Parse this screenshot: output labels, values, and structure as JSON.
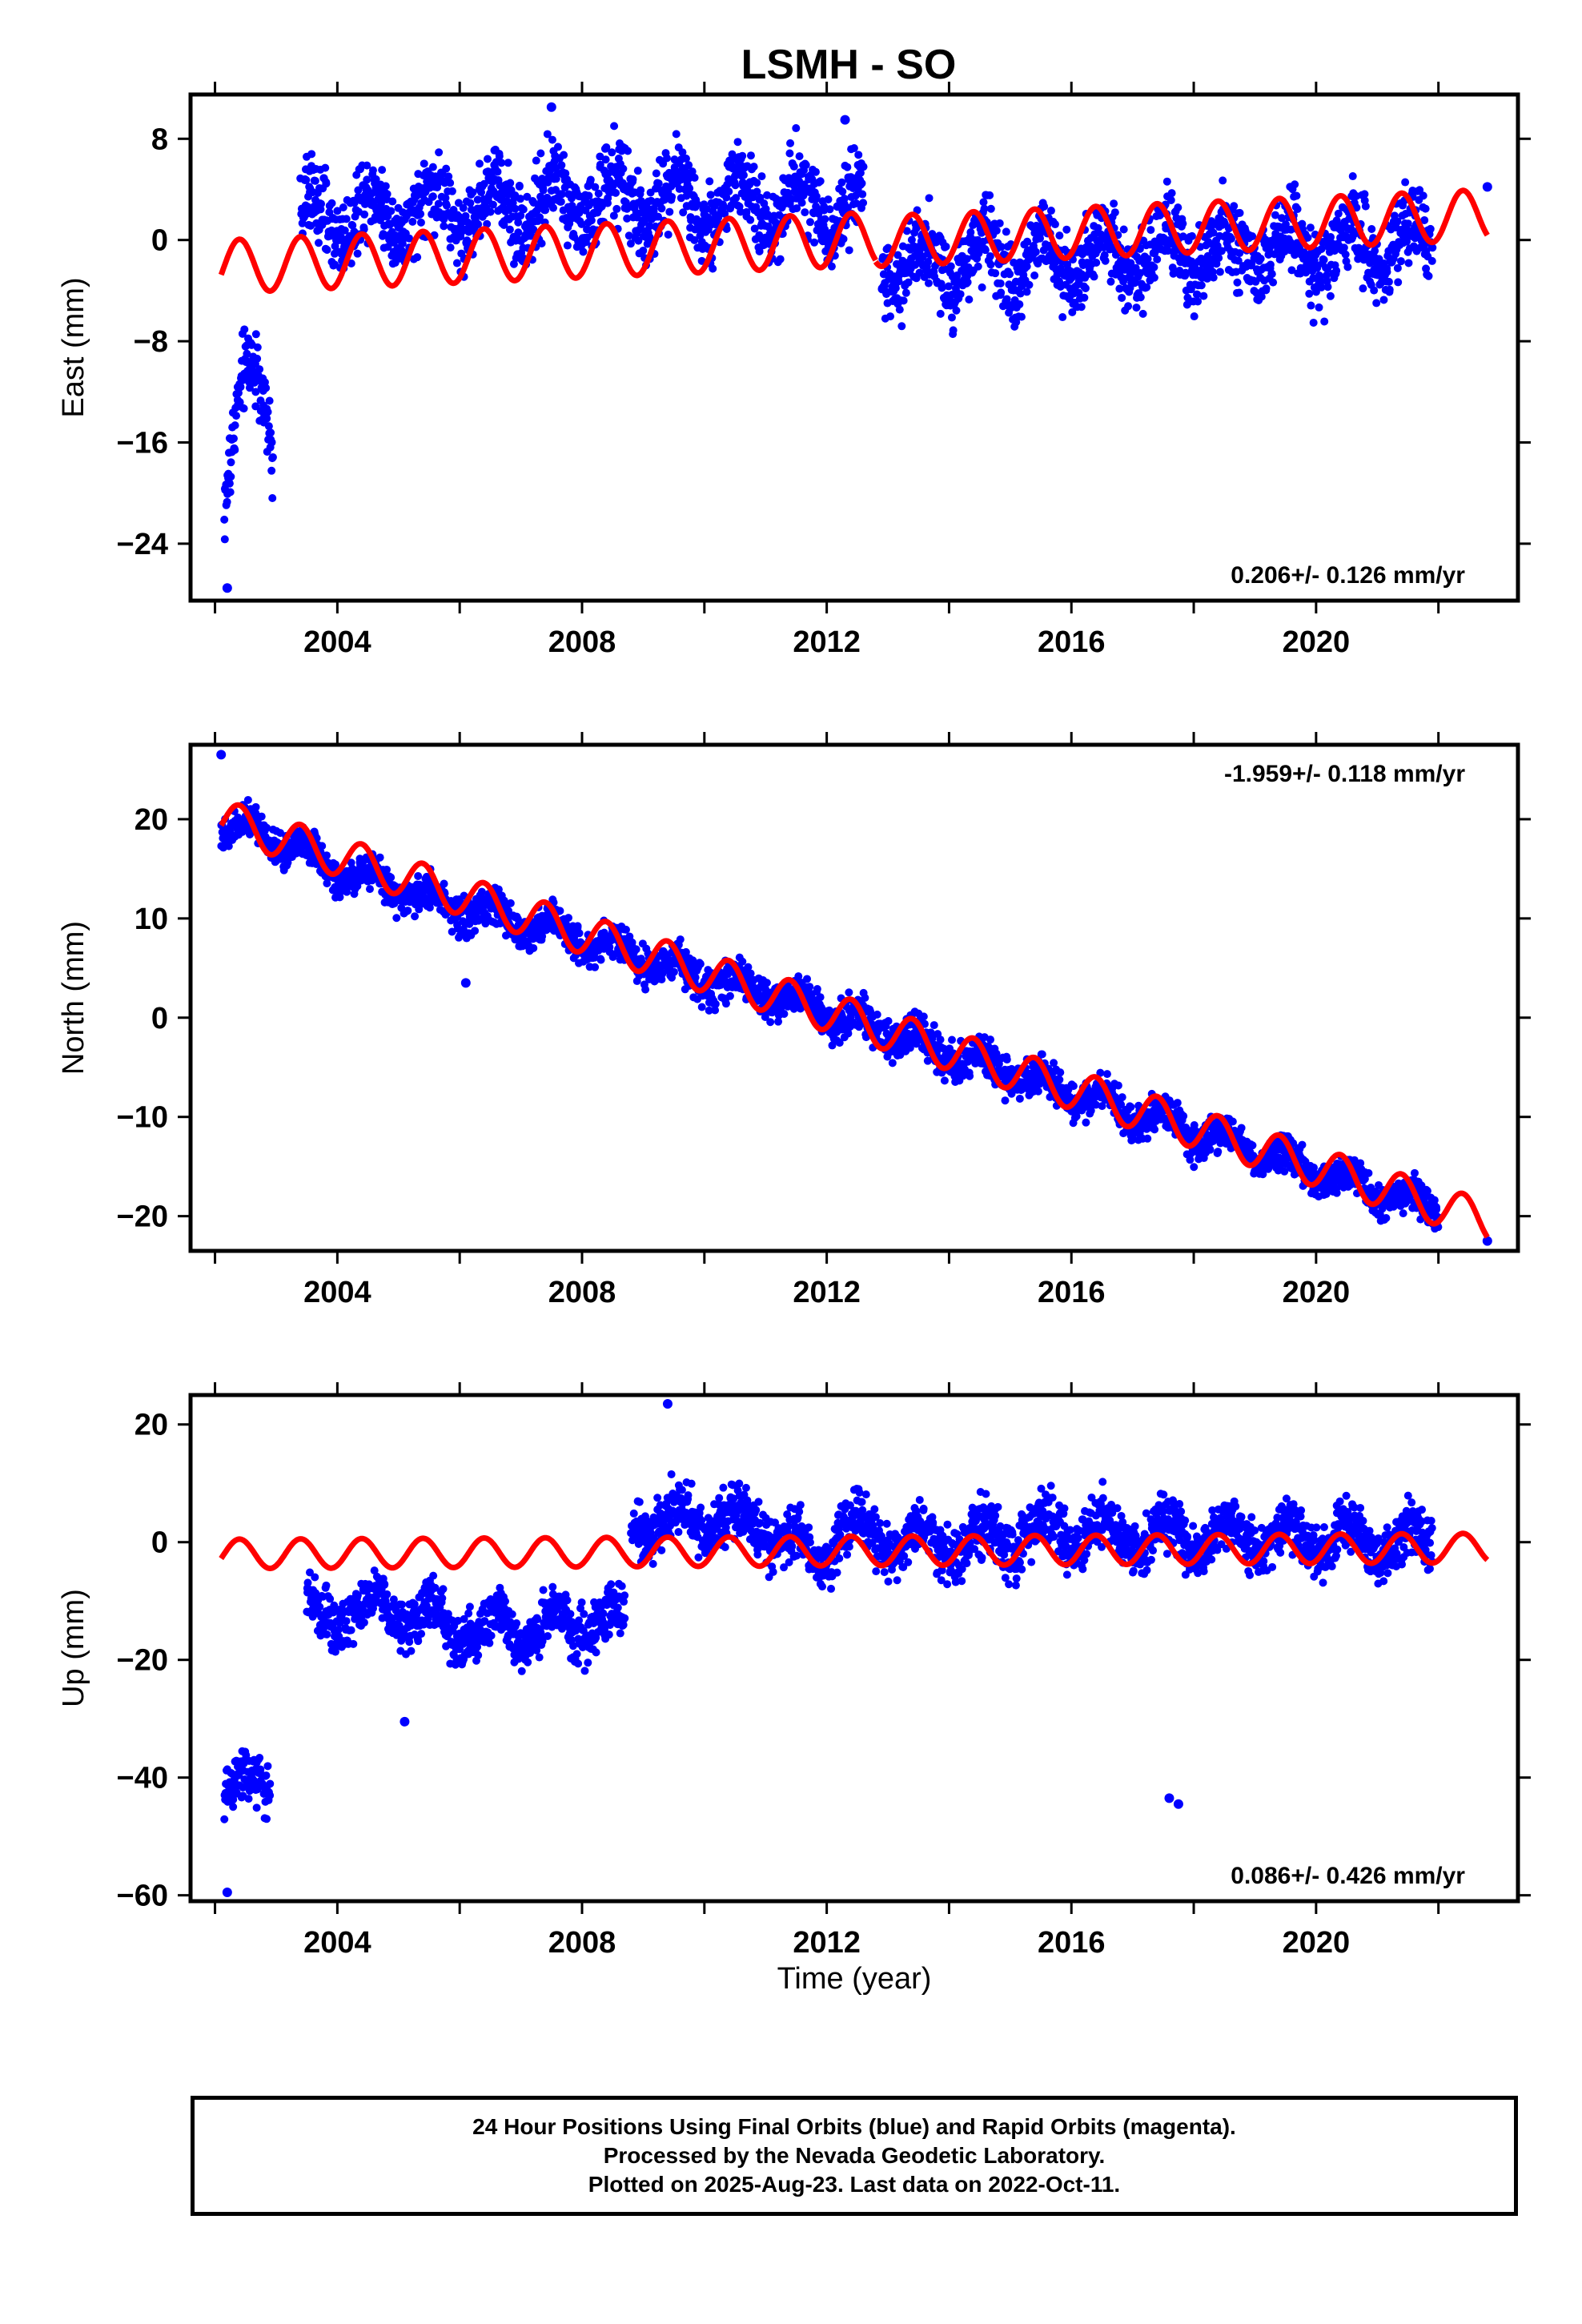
{
  "title": "LSMH - SO",
  "colors": {
    "data": "#0000ff",
    "model": "#ff0000",
    "axis": "#000000"
  },
  "xlabel": "Time (year)",
  "x_tick_labels": [
    "2004",
    "2008",
    "2012",
    "2016",
    "2020"
  ],
  "footer": {
    "line1": "24 Hour Positions Using Final Orbits (blue) and Rapid Orbits (magenta).",
    "line2": "Processed by the Nevada Geodetic Laboratory.",
    "line3": "Plotted on 2025-Aug-23. Last data on 2022-Oct-11."
  },
  "chart_data": [
    {
      "type": "scatter",
      "ylabel": "East (mm)",
      "rate_label": "0.206+/- 0.126 mm/yr",
      "rate_position": "bottom-right",
      "xlim": [
        2001.6,
        2023.3
      ],
      "ylim": [
        -28.5,
        11.5
      ],
      "x_ticks": [
        2004,
        2008,
        2012,
        2016,
        2020
      ],
      "y_ticks": [
        8,
        0,
        -8,
        -16,
        -24
      ],
      "y_tick_labels": [
        "8",
        "0",
        "−8",
        "−16",
        "−24"
      ],
      "data_segments": [
        {
          "x": [
            2002.15,
            2002.35,
            2002.55,
            2002.75,
            2002.95
          ],
          "y": [
            -20,
            -14,
            -11,
            -12,
            -16
          ]
        },
        {
          "x": [
            2003.4,
            2003.9,
            2005.0,
            2006.0,
            2007.0,
            2007.5,
            2008.0,
            2009.0,
            2009.5,
            2010.0,
            2011.0,
            2011.5,
            2012.0,
            2012.6
          ],
          "y": [
            1.5,
            2.0,
            2.2,
            2.5,
            2.8,
            3.0,
            3.0,
            3.0,
            3.2,
            3.0,
            3.0,
            3.0,
            2.8,
            2.5
          ]
        },
        {
          "x": [
            2012.9,
            2014.0,
            2015.0,
            2016.0,
            2017.0,
            2018.0,
            2019.0,
            2020.0,
            2021.0,
            2021.9
          ],
          "y": [
            -2.0,
            -1.8,
            -1.6,
            -1.4,
            -1.2,
            -1.0,
            -0.8,
            -0.6,
            -0.4,
            -0.3
          ]
        }
      ],
      "outliers": [
        {
          "x": 2002.2,
          "y": -27.5
        },
        {
          "x": 2007.5,
          "y": 10.5
        },
        {
          "x": 2012.3,
          "y": 9.5
        },
        {
          "x": 2022.8,
          "y": 4.2
        }
      ],
      "scatter_amplitude": 3.5,
      "model": {
        "x_start": 2002.1,
        "x_end": 2022.8,
        "segments": [
          {
            "x0": 2002.1,
            "x1": 2012.8,
            "y0": -2.1,
            "y1": 0.1,
            "amp": 2.1
          },
          {
            "x0": 2012.8,
            "x1": 2022.8,
            "y0": -0.1,
            "y1": 2.0,
            "amp": 2.0
          }
        ]
      }
    },
    {
      "type": "scatter",
      "ylabel": "North (mm)",
      "rate_label": "-1.959+/- 0.118 mm/yr",
      "rate_position": "top-right",
      "xlim": [
        2001.6,
        2023.3
      ],
      "ylim": [
        -23.5,
        27.5
      ],
      "x_ticks": [
        2004,
        2008,
        2012,
        2016,
        2020
      ],
      "y_ticks": [
        20,
        10,
        0,
        -10,
        -20
      ],
      "y_tick_labels": [
        "20",
        "10",
        "0",
        "−10",
        "−20"
      ],
      "data_segments": [
        {
          "x": [
            2002.1,
            2003.0,
            2004.0,
            2005.0,
            2006.0,
            2007.0,
            2008.0,
            2009.0,
            2010.0,
            2011.0,
            2012.0,
            2013.0,
            2014.0,
            2015.0,
            2016.0,
            2017.0,
            2018.0,
            2019.0,
            2020.0,
            2021.0,
            2022.0
          ],
          "y": [
            19.5,
            18.0,
            15.0,
            13.0,
            11.0,
            9.5,
            8.0,
            6.0,
            4.0,
            2.5,
            0.5,
            -1.5,
            -3.5,
            -5.5,
            -7.5,
            -9.5,
            -11.5,
            -13.5,
            -15.5,
            -17.5,
            -19.0
          ]
        }
      ],
      "outliers": [
        {
          "x": 2002.1,
          "y": 26.5
        },
        {
          "x": 2006.1,
          "y": 3.5
        },
        {
          "x": 2022.8,
          "y": -22.5
        }
      ],
      "scatter_amplitude": 2.0,
      "model": {
        "x_start": 2002.1,
        "x_end": 2022.8,
        "segments": [
          {
            "x0": 2002.1,
            "x1": 2022.8,
            "y0": 20.0,
            "y1": -20.5,
            "amp": 2.0
          }
        ]
      }
    },
    {
      "type": "scatter",
      "ylabel": "Up (mm)",
      "rate_label": "0.086+/- 0.426 mm/yr",
      "rate_position": "bottom-right",
      "xlim": [
        2001.6,
        2023.3
      ],
      "ylim": [
        -61,
        25
      ],
      "x_ticks": [
        2004,
        2008,
        2012,
        2016,
        2020
      ],
      "y_ticks": [
        20,
        0,
        -20,
        -40,
        -60
      ],
      "y_tick_labels": [
        "20",
        "0",
        "−20",
        "−40",
        "−60"
      ],
      "data_segments": [
        {
          "x": [
            2002.15,
            2002.5,
            2002.9
          ],
          "y": [
            -40,
            -42,
            -41
          ]
        },
        {
          "x": [
            2003.5,
            2004.0,
            2005.0,
            2005.5,
            2006.0,
            2007.0,
            2008.0,
            2008.7
          ],
          "y": [
            -12,
            -12,
            -11,
            -13,
            -15,
            -15,
            -14,
            -13
          ]
        },
        {
          "x": [
            2008.8,
            2010.0,
            2011.0,
            2011.8,
            2012.2,
            2013.0,
            2014.0,
            2015.0,
            2016.0,
            2017.0,
            2018.0,
            2019.0,
            2020.0,
            2021.0,
            2021.9
          ],
          "y": [
            3,
            4,
            3,
            -4,
            2,
            0,
            0,
            1,
            2,
            1,
            1,
            1,
            1,
            0,
            0
          ]
        }
      ],
      "outliers": [
        {
          "x": 2009.4,
          "y": 23.5
        },
        {
          "x": 2017.6,
          "y": -43.5
        },
        {
          "x": 2017.75,
          "y": -44.5
        },
        {
          "x": 2002.2,
          "y": -59.5
        },
        {
          "x": 2005.1,
          "y": -30.5
        }
      ],
      "scatter_amplitude": 5.0,
      "model": {
        "x_start": 2002.1,
        "x_end": 2022.8,
        "segments": [
          {
            "x0": 2002.1,
            "x1": 2022.8,
            "y0": -2.0,
            "y1": -1.0,
            "amp": 2.5
          }
        ]
      }
    }
  ]
}
